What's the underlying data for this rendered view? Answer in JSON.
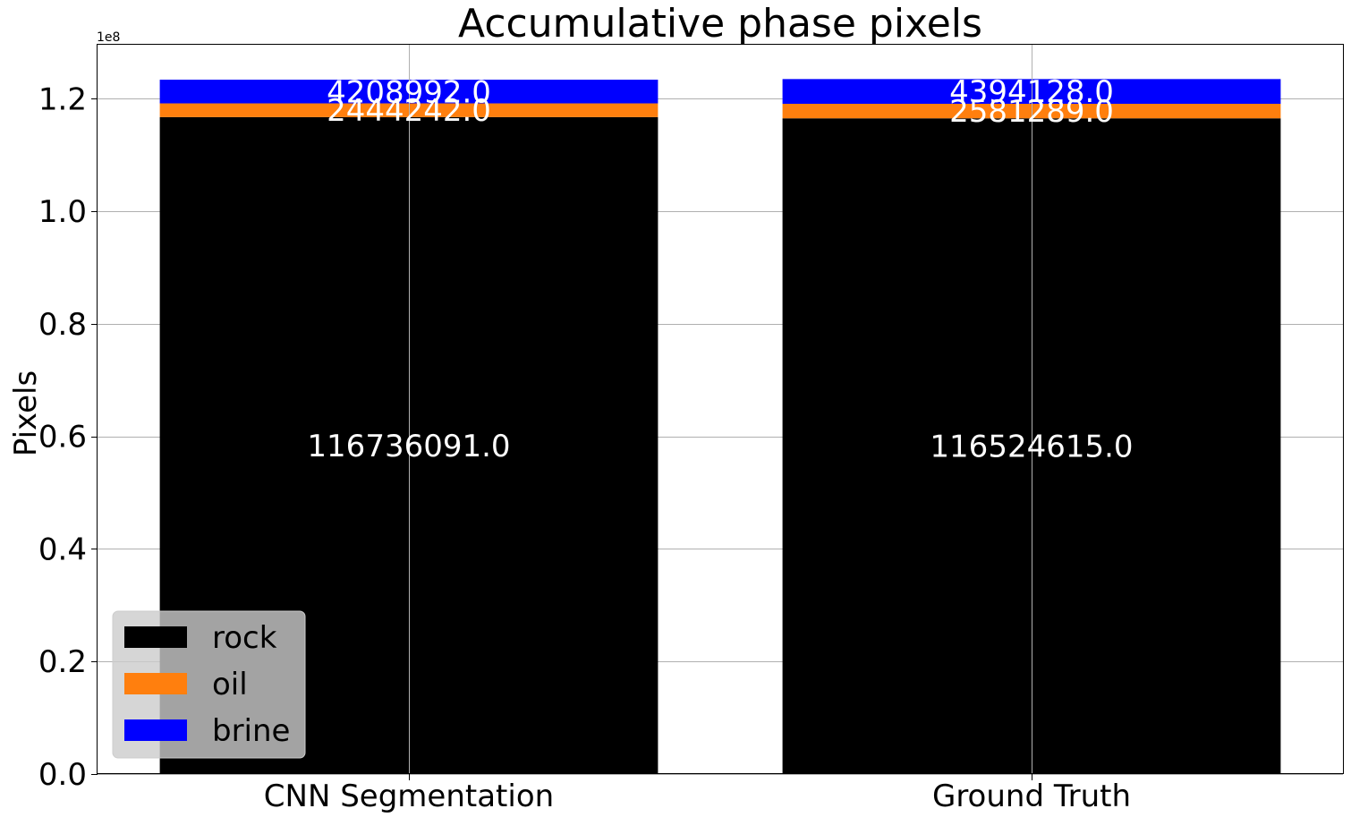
{
  "chart_data": {
    "type": "bar",
    "stacked": true,
    "title": "Accumulative phase pixels",
    "xlabel": "",
    "ylabel": "Pixels",
    "offset_label": "1e8",
    "categories": [
      "CNN Segmentation",
      "Ground Truth"
    ],
    "series": [
      {
        "name": "rock",
        "color": "#000000",
        "values": [
          116736091.0,
          116524615.0
        ],
        "labels": [
          "116736091.0",
          "116524615.0"
        ]
      },
      {
        "name": "oil",
        "color": "#ff7f0e",
        "values": [
          2444242.0,
          2581289.0
        ],
        "labels": [
          "2444242.0",
          "2581289.0"
        ]
      },
      {
        "name": "brine",
        "color": "#0000ff",
        "values": [
          4208992.0,
          4394128.0
        ],
        "labels": [
          "4208992.0",
          "4394128.0"
        ]
      }
    ],
    "ylim": [
      0,
      129600000
    ],
    "yticks": [
      0,
      20000000,
      40000000,
      60000000,
      80000000,
      100000000,
      120000000
    ],
    "ytick_labels": [
      "0.0",
      "0.2",
      "0.4",
      "0.6",
      "0.8",
      "1.0",
      "1.2"
    ],
    "grid": true,
    "legend_position": "lower-left"
  }
}
